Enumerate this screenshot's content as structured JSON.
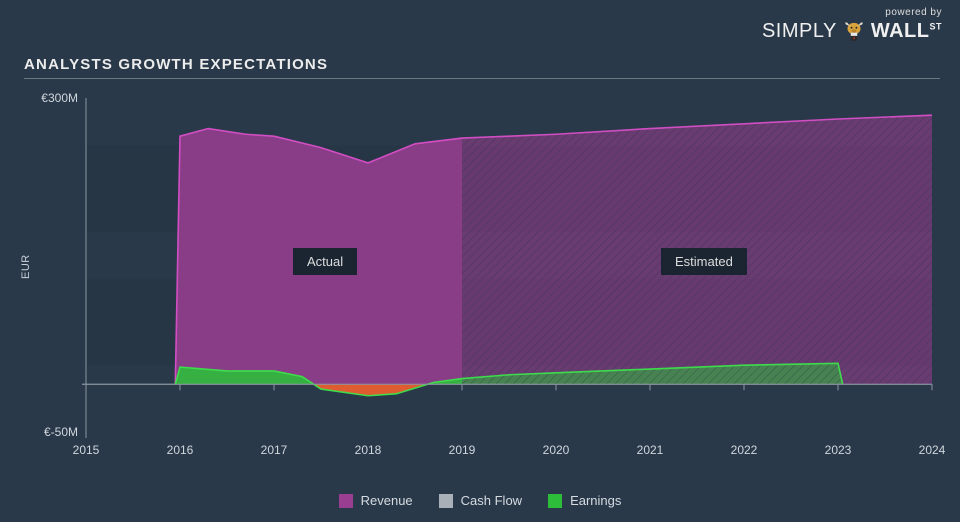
{
  "branding": {
    "powered": "powered by",
    "name_light": "SIMPLY",
    "name_bold": "WALL",
    "name_sup": "ST"
  },
  "title": "ANALYSTS GROWTH EXPECTATIONS",
  "chart": {
    "type": "area",
    "background_color": "#2a3949",
    "axis_color": "#8b96a2",
    "grid_color": "#3b4a5a",
    "tick_font_size": 12,
    "tick_color": "#cfd6dd",
    "ylabel": "EUR",
    "yticks": [
      {
        "value": 300,
        "label": "€300M"
      },
      {
        "value": -50,
        "label": "€-50M"
      }
    ],
    "ylim": [
      -50,
      300
    ],
    "xticks": [
      2015,
      2016,
      2017,
      2018,
      2019,
      2020,
      2021,
      2022,
      2023,
      2024
    ],
    "xlim": [
      2015,
      2024
    ],
    "actual_end": 2019,
    "region_labels": {
      "actual": "Actual",
      "estimated": "Estimated"
    },
    "region_label_bg": "#1b2531",
    "series": [
      {
        "name": "Revenue",
        "fill": "#9a3e92",
        "stroke": "#d84fc8",
        "opacity_actual": 0.85,
        "opacity_est": 0.55,
        "points": [
          [
            2015.95,
            0
          ],
          [
            2016,
            260
          ],
          [
            2016.3,
            268
          ],
          [
            2016.7,
            262
          ],
          [
            2017,
            260
          ],
          [
            2017.5,
            248
          ],
          [
            2018,
            232
          ],
          [
            2018.5,
            252
          ],
          [
            2019,
            258
          ],
          [
            2019.5,
            260
          ],
          [
            2020,
            262
          ],
          [
            2021,
            268
          ],
          [
            2022,
            273
          ],
          [
            2023,
            278
          ],
          [
            2024,
            282
          ]
        ]
      },
      {
        "name": "Cash Flow",
        "fill": "#a9b0b8",
        "stroke": "#c3cad2",
        "opacity_actual": 0.0,
        "opacity_est": 0.0,
        "points": []
      },
      {
        "name": "Earnings",
        "fill": "#2ebd3b",
        "stroke": "#3de24b",
        "opacity_actual": 0.9,
        "opacity_est": 0.55,
        "points": [
          [
            2015.95,
            0
          ],
          [
            2016,
            18
          ],
          [
            2016.5,
            14
          ],
          [
            2017,
            14
          ],
          [
            2017.3,
            8
          ],
          [
            2017.5,
            -5
          ],
          [
            2018,
            -12
          ],
          [
            2018.3,
            -10
          ],
          [
            2018.7,
            2
          ],
          [
            2019,
            6
          ],
          [
            2019.5,
            10
          ],
          [
            2020,
            12
          ],
          [
            2021,
            16
          ],
          [
            2022,
            20
          ],
          [
            2023,
            22
          ],
          [
            2023.05,
            0
          ]
        ],
        "negative_fill": "#e8572f"
      }
    ],
    "hatch_est": {
      "angle": 45,
      "spacing": 6,
      "color": "#1e2a37",
      "opacity": 0.35
    },
    "legend": [
      {
        "label": "Revenue",
        "color": "#9a3e92"
      },
      {
        "label": "Cash Flow",
        "color": "#a9b0b8"
      },
      {
        "label": "Earnings",
        "color": "#2ebd3b"
      }
    ]
  }
}
